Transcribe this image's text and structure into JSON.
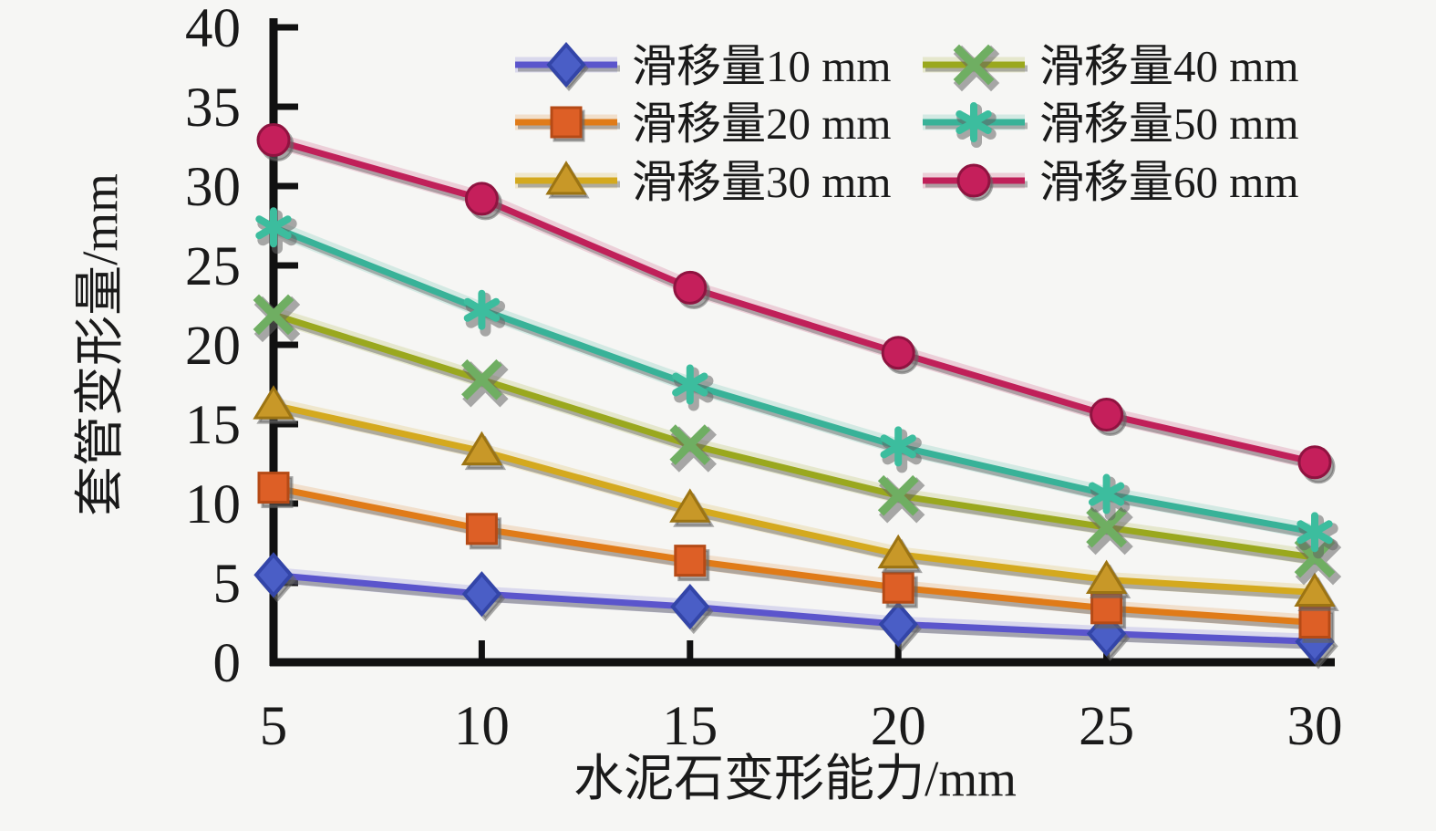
{
  "chart_data": {
    "type": "line",
    "x": [
      5,
      10,
      15,
      20,
      25,
      30
    ],
    "xlabel": "水泥石变形能力/mm",
    "ylabel": "套管变形量/mm",
    "xlim": [
      5,
      30
    ],
    "ylim": [
      0,
      40
    ],
    "xticks": [
      5,
      10,
      15,
      20,
      25,
      30
    ],
    "yticks": [
      0,
      5,
      10,
      15,
      20,
      25,
      30,
      35,
      40
    ],
    "grid": false,
    "legend_position": "top-inside-two-columns",
    "background": "#f6f6f4",
    "axis_color": "#111111",
    "series": [
      {
        "name": "滑移量10 mm",
        "marker": "diamond",
        "line_color": "#5b55cc",
        "marker_color": "#4a5ec6",
        "marker_edge": "#3345a8",
        "values": [
          5.5,
          4.3,
          3.5,
          2.4,
          1.8,
          1.3
        ]
      },
      {
        "name": "滑移量20 mm",
        "marker": "square",
        "line_color": "#e07b18",
        "marker_color": "#dd5f26",
        "marker_edge": "#b54a16",
        "values": [
          11.0,
          8.4,
          6.4,
          4.7,
          3.4,
          2.5
        ]
      },
      {
        "name": "滑移量30 mm",
        "marker": "triangle",
        "line_color": "#d4a91e",
        "marker_color": "#c89828",
        "marker_edge": "#9c7413",
        "values": [
          16.2,
          13.3,
          9.7,
          6.8,
          5.2,
          4.4
        ]
      },
      {
        "name": "滑移量40 mm",
        "marker": "x",
        "line_color": "#9aa81e",
        "marker_color": "#6fae62",
        "marker_edge": "#4d8a42",
        "values": [
          21.9,
          17.8,
          13.7,
          10.5,
          8.5,
          6.6
        ]
      },
      {
        "name": "滑移量50 mm",
        "marker": "star",
        "line_color": "#38b298",
        "marker_color": "#3cbd9e",
        "marker_edge": "#1e907a",
        "values": [
          27.4,
          22.2,
          17.5,
          13.6,
          10.6,
          8.2
        ]
      },
      {
        "name": "滑移量60 mm",
        "marker": "circle",
        "line_color": "#c02059",
        "marker_color": "#c51f5b",
        "marker_edge": "#8f1340",
        "values": [
          32.9,
          29.2,
          23.6,
          19.5,
          15.6,
          12.6
        ]
      }
    ],
    "legend_columns": [
      [
        0,
        1,
        2
      ],
      [
        3,
        4,
        5
      ]
    ]
  }
}
